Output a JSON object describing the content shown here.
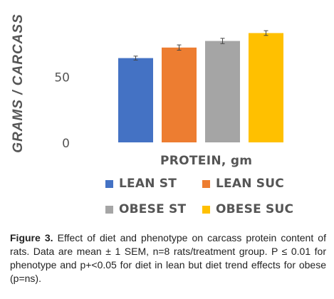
{
  "chart_data": {
    "type": "bar",
    "ylabel": "GRAMS / CARCASS",
    "xlabel": "PROTEIN, gm",
    "ylim": [
      0,
      100
    ],
    "yticks": [
      0,
      50
    ],
    "categories": [
      "LEAN ST",
      "LEAN SUC",
      "OBESE ST",
      "OBESE SUC"
    ],
    "values": [
      64,
      72,
      77,
      83
    ],
    "errors": [
      1.5,
      2.0,
      2.0,
      1.8
    ],
    "colors": [
      "#4472C4",
      "#ED7D31",
      "#A5A5A5",
      "#FFC000"
    ],
    "legend_placement": "bottom",
    "grid": false
  },
  "caption": {
    "label": "Figure 3.",
    "text": " Effect of diet and phenotype on carcass protein content of rats. Data are mean ± 1 SEM, n=8 rats/treatment group. P ≤ 0.01 for phenotype and p+<0.05 for diet in lean but diet trend effects for obese (p=ns)."
  }
}
